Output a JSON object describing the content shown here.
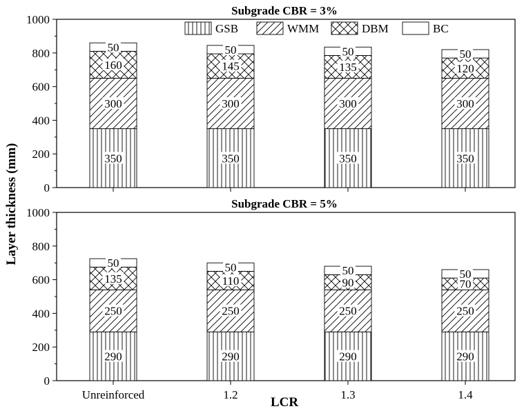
{
  "chart_data": {
    "type": "bar",
    "stacked": true,
    "xlabel": "LCR",
    "ylabel": "Layer thickness (mm)",
    "categories": [
      "Unreinforced",
      "1.2",
      "1.3",
      "1.4"
    ],
    "ylim": [
      0,
      1000
    ],
    "yticks": [
      0,
      200,
      400,
      600,
      800,
      1000
    ],
    "grid": false,
    "legend": {
      "placement": "top-right",
      "entries": [
        {
          "name": "GSB",
          "pattern": "vertical-lines"
        },
        {
          "name": "WMM",
          "pattern": "diagonal-lines"
        },
        {
          "name": "DBM",
          "pattern": "crosshatch"
        },
        {
          "name": "BC",
          "pattern": "blank"
        }
      ]
    },
    "panels": [
      {
        "title": "Subgrade CBR = 3%",
        "series": [
          {
            "name": "GSB",
            "values": [
              350,
              350,
              350,
              350
            ]
          },
          {
            "name": "WMM",
            "values": [
              300,
              300,
              300,
              300
            ]
          },
          {
            "name": "DBM",
            "values": [
              160,
              145,
              135,
              120
            ]
          },
          {
            "name": "BC",
            "values": [
              50,
              50,
              50,
              50
            ]
          }
        ]
      },
      {
        "title": "Subgrade CBR = 5%",
        "series": [
          {
            "name": "GSB",
            "values": [
              290,
              290,
              290,
              290
            ]
          },
          {
            "name": "WMM",
            "values": [
              250,
              250,
              250,
              250
            ]
          },
          {
            "name": "DBM",
            "values": [
              135,
              110,
              90,
              70
            ]
          },
          {
            "name": "BC",
            "values": [
              50,
              50,
              50,
              50
            ]
          }
        ]
      }
    ]
  }
}
